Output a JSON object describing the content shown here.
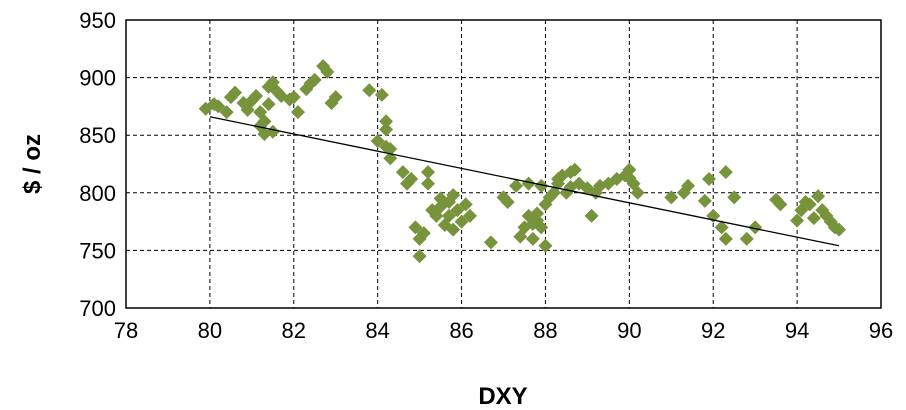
{
  "chart_data": {
    "type": "scatter",
    "xlabel": "DXY",
    "ylabel": "$ / oz",
    "xlim": [
      78,
      96
    ],
    "ylim": [
      700,
      950
    ],
    "xticks": [
      78,
      80,
      82,
      84,
      86,
      88,
      90,
      92,
      94,
      96
    ],
    "yticks": [
      700,
      750,
      800,
      850,
      900,
      950
    ],
    "grid": true,
    "marker_color": "#77933c",
    "marker": "diamond",
    "trendline": {
      "x": [
        80,
        95
      ],
      "y": [
        866,
        754
      ],
      "color": "#000000"
    },
    "series": [
      {
        "x": [
          79.9,
          80.1,
          80.2,
          80.4,
          80.5,
          80.6,
          80.8,
          80.9,
          81.0,
          81.1,
          81.2,
          81.2,
          81.3,
          81.3,
          81.4,
          81.4,
          81.5,
          81.5,
          81.6,
          81.7,
          81.9,
          82.0,
          82.1,
          82.3,
          82.4,
          82.5,
          82.7,
          82.8,
          82.9,
          83.0,
          83.8,
          84.0,
          84.1,
          84.2,
          84.2,
          84.2,
          84.3,
          84.3,
          84.6,
          84.7,
          84.8,
          84.9,
          85.0,
          85.0,
          85.1,
          85.2,
          85.2,
          85.3,
          85.4,
          85.5,
          85.5,
          85.6,
          85.7,
          85.7,
          85.8,
          85.8,
          85.9,
          86.0,
          86.1,
          86.2,
          86.7,
          87.0,
          87.1,
          87.3,
          87.4,
          87.5,
          87.6,
          87.6,
          87.7,
          87.7,
          87.8,
          87.8,
          87.9,
          87.9,
          88.0,
          88.0,
          88.1,
          88.2,
          88.3,
          88.3,
          88.4,
          88.5,
          88.6,
          88.6,
          88.7,
          88.8,
          89.0,
          89.1,
          89.2,
          89.3,
          89.5,
          89.7,
          89.9,
          90.0,
          90.0,
          90.1,
          90.2,
          91.0,
          91.3,
          91.4,
          91.8,
          91.9,
          92.0,
          92.2,
          92.3,
          92.3,
          92.5,
          92.8,
          93.0,
          93.5,
          93.6,
          94.0,
          94.1,
          94.2,
          94.3,
          94.4,
          94.5,
          94.6,
          94.7,
          94.8,
          94.9,
          95.0
        ],
        "y": [
          873,
          877,
          875,
          870,
          883,
          887,
          878,
          872,
          880,
          884,
          870,
          858,
          851,
          862,
          892,
          877,
          896,
          853,
          888,
          884,
          881,
          883,
          870,
          890,
          895,
          898,
          910,
          905,
          878,
          883,
          889,
          845,
          885,
          862,
          840,
          855,
          838,
          830,
          818,
          808,
          812,
          770,
          760,
          745,
          765,
          818,
          808,
          785,
          780,
          795,
          788,
          772,
          792,
          780,
          798,
          768,
          785,
          775,
          790,
          780,
          757,
          796,
          792,
          806,
          762,
          770,
          780,
          808,
          773,
          760,
          776,
          782,
          806,
          770,
          754,
          790,
          796,
          800,
          808,
          812,
          815,
          800,
          818,
          805,
          820,
          808,
          804,
          780,
          800,
          806,
          808,
          812,
          815,
          820,
          813,
          808,
          800,
          796,
          800,
          806,
          793,
          812,
          780,
          770,
          760,
          818,
          796,
          760,
          770,
          794,
          790,
          776,
          785,
          792,
          790,
          778,
          797,
          785,
          780,
          775,
          770,
          768
        ]
      }
    ]
  }
}
